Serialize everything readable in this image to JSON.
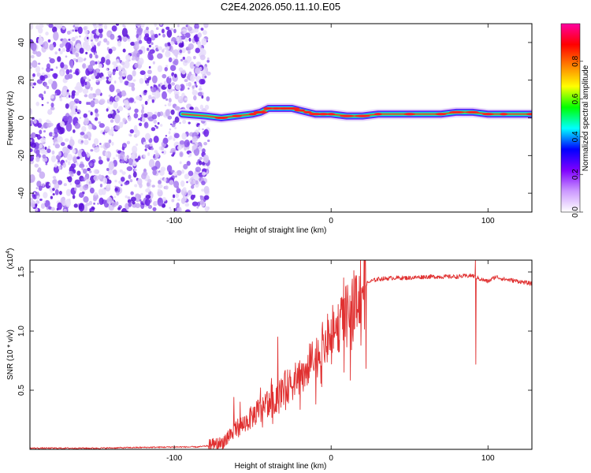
{
  "chart_data": [
    {
      "type": "heatmap",
      "title": "C2E4.2026.050.11.10.E05",
      "xlabel": "Height of straight line (km)",
      "ylabel": "Frequency (Hz)",
      "xlim": [
        -192,
        128
      ],
      "ylim": [
        -50,
        50
      ],
      "x_ticks": [
        -100,
        0,
        100
      ],
      "y_ticks": [
        -40,
        -20,
        0,
        20,
        40
      ],
      "noise_region_x": [
        -192,
        -78
      ],
      "ridge": {
        "description": "narrow high-amplitude frequency ridge",
        "x": [
          -95,
          -80,
          -70,
          -60,
          -50,
          -45,
          -40,
          -35,
          -30,
          -25,
          -20,
          -15,
          -10,
          -5,
          0,
          10,
          20,
          30,
          50,
          70,
          80,
          90,
          100,
          110,
          128
        ],
        "frequency": [
          2,
          1,
          0,
          1,
          2,
          3,
          5,
          5,
          5,
          5,
          4,
          3,
          2,
          2,
          2,
          1,
          1,
          2,
          2,
          2,
          3,
          3,
          2,
          2,
          2
        ]
      },
      "colorbar": {
        "label": "Normalized spectral amplitude",
        "ticks": [
          "0.0",
          "0.2",
          "0.4",
          "0.6",
          "0.8"
        ],
        "range": [
          0,
          1
        ],
        "stops": [
          "#ffffff",
          "#cc99ff",
          "#7f00ff",
          "#0000ff",
          "#00ffff",
          "#00ff00",
          "#ffff00",
          "#ff8000",
          "#ff0000",
          "#ff00a0"
        ]
      }
    },
    {
      "type": "line",
      "xlabel": "Height of straight line (km)",
      "ylabel": "SNR (10 * v/v)",
      "y_multiplier": "(x10",
      "y_exponent": "4",
      "y_multiplier_close": ")",
      "xlim": [
        -192,
        128
      ],
      "ylim": [
        0,
        1.6
      ],
      "x_ticks": [
        -100,
        0,
        100
      ],
      "y_ticks": [
        0.5,
        1.0,
        1.5
      ],
      "y_tick_labels": [
        "0.5",
        "1.0",
        "1.5"
      ],
      "series": [
        {
          "name": "SNR",
          "color": "#e03030",
          "x": [
            -192,
            -150,
            -100,
            -85,
            -78,
            -70,
            -65,
            -60,
            -55,
            -50,
            -45,
            -40,
            -35,
            -30,
            -25,
            -20,
            -15,
            -10,
            -5,
            0,
            5,
            10,
            15,
            20,
            25,
            30,
            40,
            50,
            60,
            70,
            80,
            90,
            95,
            100,
            105,
            110,
            120,
            128
          ],
          "y": [
            0.01,
            0.01,
            0.02,
            0.02,
            0.03,
            0.05,
            0.12,
            0.18,
            0.22,
            0.28,
            0.35,
            0.4,
            0.45,
            0.52,
            0.55,
            0.62,
            0.7,
            0.78,
            0.88,
            0.98,
            1.05,
            1.15,
            1.3,
            1.38,
            1.42,
            1.44,
            1.45,
            1.45,
            1.46,
            1.46,
            1.46,
            1.47,
            1.44,
            1.42,
            1.46,
            1.44,
            1.42,
            1.4
          ]
        }
      ],
      "spikes": [
        {
          "x": -62,
          "y": 0.44
        },
        {
          "x": -58,
          "y": 0.4
        },
        {
          "x": -45,
          "y": 0.52
        },
        {
          "x": -38,
          "y": 0.6
        },
        {
          "x": -34,
          "y": 0.95
        },
        {
          "x": -20,
          "y": 0.75
        },
        {
          "x": -10,
          "y": 0.85
        },
        {
          "x": 8,
          "y": 1.45
        },
        {
          "x": 12,
          "y": 1.3
        },
        {
          "x": 22,
          "y": 1.52
        },
        {
          "x": 92,
          "y": 1.6
        }
      ]
    }
  ]
}
